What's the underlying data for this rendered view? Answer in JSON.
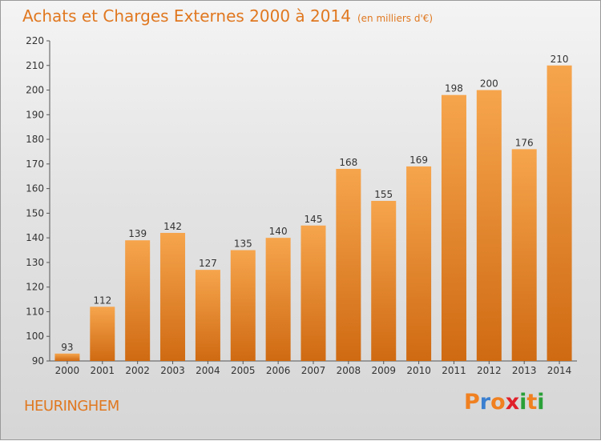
{
  "title": "Achats et Charges Externes 2000 à 2014",
  "unit_label": "(en milliers d'€)",
  "commune": "HEURINGHEM",
  "logo": {
    "text": "Proxiti",
    "letter_colors": [
      "#f08020",
      "#3a7fd0",
      "#f08020",
      "#e0202a",
      "#2aa038",
      "#f08020",
      "#2aa038"
    ]
  },
  "colors": {
    "accent": "#e07820",
    "bar_top": "#f6a54d",
    "bar_bottom": "#cf6a12"
  },
  "chart_data": {
    "type": "bar",
    "categories": [
      "2000",
      "2001",
      "2002",
      "2003",
      "2004",
      "2005",
      "2006",
      "2007",
      "2008",
      "2009",
      "2010",
      "2011",
      "2012",
      "2013",
      "2014"
    ],
    "values": [
      93,
      112,
      139,
      142,
      127,
      135,
      140,
      145,
      168,
      155,
      169,
      198,
      200,
      176,
      210
    ],
    "ylim": [
      90,
      220
    ],
    "yticks": [
      90,
      100,
      110,
      120,
      130,
      140,
      150,
      160,
      170,
      180,
      190,
      200,
      210,
      220
    ],
    "grid": false
  }
}
